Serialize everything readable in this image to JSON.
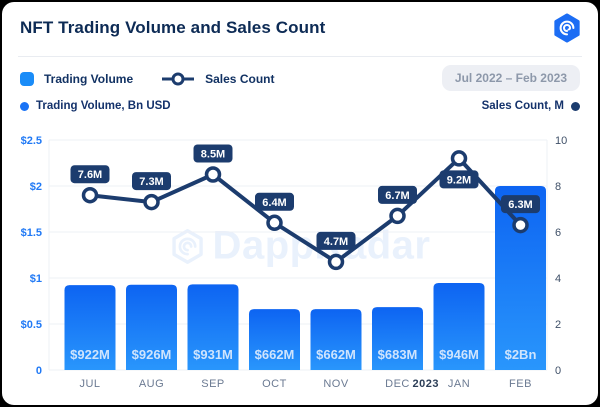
{
  "header": {
    "title": "NFT Trading Volume and Sales Count",
    "logo": "dappradar-logo"
  },
  "legend": {
    "trading_volume": "Trading Volume",
    "sales_count": "Sales Count"
  },
  "period_badge": "Jul 2022 – Feb 2023",
  "axis_captions": {
    "left": "Trading Volume, Bn USD",
    "right": "Sales Count, M"
  },
  "watermark": "DappRadar",
  "colors": {
    "accent_blue": "#1a8cf8",
    "navy": "#1c3c6e",
    "bar_gradient_top": "#0d64f2",
    "bar_gradient_bottom": "#2996fc",
    "bar_label": "#cfe4fd",
    "left_tick": "#2079f5",
    "right_tick": "#3f5068",
    "month_label": "#6b7a92",
    "year_label": "#2c3e57",
    "gridline": "#edf0f6",
    "pill_bg": "#1c3c6e",
    "pill_text": "#ffffff",
    "point_fill": "#ffffff",
    "watermark": "#e9f1fc"
  },
  "chart_data": {
    "type": "bar",
    "subtype": "bar+line combo",
    "title": "NFT Trading Volume and Sales Count",
    "categories": [
      "JUL",
      "AUG",
      "SEP",
      "OCT",
      "NOV",
      "DEC",
      "JAN",
      "FEB"
    ],
    "year_break": {
      "index": 6,
      "label": "2023"
    },
    "series": [
      {
        "name": "Trading Volume",
        "type": "bar",
        "axis": "left",
        "unit": "Bn USD",
        "values": [
          0.922,
          0.926,
          0.931,
          0.662,
          0.662,
          0.683,
          0.946,
          2.0
        ],
        "labels": [
          "$922M",
          "$926M",
          "$931M",
          "$662M",
          "$662M",
          "$683M",
          "$946M",
          "$2Bn"
        ]
      },
      {
        "name": "Sales Count",
        "type": "line",
        "axis": "right",
        "unit": "M",
        "values": [
          7.6,
          7.3,
          8.5,
          6.4,
          4.7,
          6.7,
          9.2,
          6.3
        ],
        "labels": [
          "7.6M",
          "7.3M",
          "8.5M",
          "6.4M",
          "4.7M",
          "6.7M",
          "9.2M",
          "6.3M"
        ],
        "label_positions": [
          "above",
          "above",
          "above",
          "above",
          "above",
          "above",
          "below",
          "above"
        ]
      }
    ],
    "axes": {
      "left": {
        "label": "Trading Volume, Bn USD",
        "min": 0,
        "max": 2.5,
        "tick_values": [
          2.5,
          2,
          1.5,
          1,
          0.5,
          0
        ],
        "tick_labels": [
          "$2.5",
          "$2",
          "$1.5",
          "$1",
          "$0.5",
          "0"
        ]
      },
      "right": {
        "label": "Sales Count, M",
        "min": 0,
        "max": 10,
        "tick_values": [
          10,
          8,
          6,
          4,
          2,
          0
        ],
        "tick_labels": [
          "10",
          "8",
          "6",
          "4",
          "2",
          "0"
        ]
      }
    },
    "grid": true,
    "legend_position": "top-left"
  }
}
